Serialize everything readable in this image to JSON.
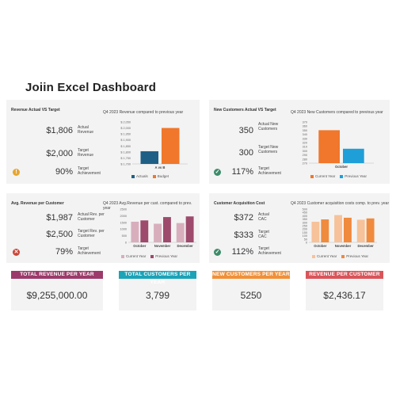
{
  "dashboard_title": "Joiin Excel Dashboard",
  "colors": {
    "navy": "#1f5f86",
    "orange": "#f0772b",
    "cyan": "#1f9fd8",
    "mauve_light": "#d8aebd",
    "mauve_dark": "#9e4a6c",
    "peach_light": "#f7c29a",
    "peach_dark": "#f08a3d",
    "status_green": "#3c8c6a",
    "status_red": "#c9463a",
    "status_amber": "#e5a632",
    "card_magenta": "#9c3b6b",
    "card_teal": "#1ba3b8",
    "card_orange": "#f0913a",
    "card_red": "#d9555a"
  },
  "panels": {
    "revenue": {
      "title": "Revenue Actual VS Target",
      "actual_value": "$1,806",
      "actual_label": "Actual Revenue",
      "target_value": "$2,000",
      "target_label": "Target Revenue",
      "achievement_value": "90%",
      "achievement_label": "Target Achievement",
      "status_icon": "warning-icon",
      "chart_title": "Q4 2023 Revenue compared to previous year"
    },
    "new_customers": {
      "title": "New Customers Actual VS Target",
      "actual_value": "350",
      "actual_label": "Actual New Customers",
      "target_value": "300",
      "target_label": "Target New Customers",
      "achievement_value": "117%",
      "achievement_label": "Target Achievement",
      "status_icon": "check-icon",
      "chart_title": "Q4 2023 New Customers compared to previous year"
    },
    "avg_revenue": {
      "title": "Avg. Revenue per Customer",
      "actual_value": "$1,987",
      "actual_label": "Actual Rev. per Customer",
      "target_value": "$2,500",
      "target_label": "Target Rev. per Customer",
      "achievement_value": "79%",
      "achievement_label": "Target Achievement",
      "status_icon": "cross-icon",
      "chart_title": "Q4 2023 Avg.Revenue per cust. compared to prev. year"
    },
    "cac": {
      "title": "Customer Acquisition Cost",
      "actual_value": "$372",
      "actual_label": "Actual CAC",
      "target_value": "$333",
      "target_label": "Target CAC",
      "achievement_value": "112%",
      "achievement_label": "Target Achievement",
      "status_icon": "check-icon",
      "chart_title": "Q4 2023 Customer acquisition costs comp. to prev. year"
    }
  },
  "cards": {
    "total_revenue": {
      "label": "TOTAL REVENUE PER YEAR",
      "value": "$9,255,000.00"
    },
    "total_customers": {
      "label": "TOTAL CUSTOMERS PER YEAR",
      "value": "3,799"
    },
    "new_customers": {
      "label": "NEW CUSTOMERS PER YEAR",
      "value": "5250"
    },
    "revenue_per_customer": {
      "label": "REVENUE PER CUSTOMER",
      "value": "$2,436.17"
    }
  },
  "chart_data": [
    {
      "id": "revenue",
      "type": "bar",
      "title": "Q4 2023 Revenue compared to previous year",
      "categories": [
        "A vs B"
      ],
      "series": [
        {
          "name": "Actuals",
          "values": [
            1806
          ],
          "color": "#1f5f86"
        },
        {
          "name": "Budget",
          "values": [
            2000
          ],
          "color": "#f0772b"
        }
      ],
      "ylim": [
        1700,
        2050
      ],
      "yticks": [
        "$ 1,700",
        "$ 1,750",
        "$ 1,800",
        "$ 1,850",
        "$ 1,900",
        "$ 1,950",
        "$ 2,000",
        "$ 2,050"
      ],
      "ytick_values": [
        1700,
        1750,
        1800,
        1850,
        1900,
        1950,
        2000,
        2050
      ],
      "legend": "bottom"
    },
    {
      "id": "new_customers",
      "type": "bar",
      "title": "Q4 2023 New Customers compared to previous year",
      "categories": [
        "October"
      ],
      "series": [
        {
          "name": "Current Year",
          "values": [
            350
          ],
          "color": "#f0772b"
        },
        {
          "name": "Previous Year",
          "values": [
            305
          ],
          "color": "#1f9fd8"
        }
      ],
      "ylim": [
        270,
        370
      ],
      "yticks": [
        "270",
        "280",
        "290",
        "300",
        "310",
        "320",
        "330",
        "340",
        "350",
        "360",
        "370"
      ],
      "ytick_values": [
        270,
        280,
        290,
        300,
        310,
        320,
        330,
        340,
        350,
        360,
        370
      ],
      "legend": "bottom"
    },
    {
      "id": "avg_revenue",
      "type": "bar",
      "title": "Q4 2023 Avg.Revenue per cust. compared to prev. year",
      "categories": [
        "October",
        "November",
        "December"
      ],
      "series": [
        {
          "name": "Current Year",
          "values": [
            1550,
            1400,
            1450
          ],
          "color": "#d8aebd"
        },
        {
          "name": "Previous Year",
          "values": [
            1650,
            1900,
            1950
          ],
          "color": "#9e4a6c"
        }
      ],
      "ylim": [
        0,
        2500
      ],
      "yticks": [
        "0",
        "500",
        "1000",
        "1500",
        "2000",
        "2500"
      ],
      "ytick_values": [
        0,
        500,
        1000,
        1500,
        2000,
        2500
      ],
      "legend": "bottom"
    },
    {
      "id": "cac",
      "type": "bar",
      "title": "Q4 2023 Customer acquisition costs comp. to prev. year",
      "categories": [
        "October",
        "November",
        "December"
      ],
      "series": [
        {
          "name": "Current Year",
          "values": [
            310,
            410,
            340
          ],
          "color": "#f7c29a"
        },
        {
          "name": "Previous Year",
          "values": [
            345,
            370,
            360
          ],
          "color": "#f08a3d"
        }
      ],
      "ylim": [
        0,
        500
      ],
      "yticks": [
        "0",
        "50",
        "100",
        "150",
        "200",
        "250",
        "300",
        "350",
        "400",
        "450",
        "500"
      ],
      "ytick_values": [
        0,
        50,
        100,
        150,
        200,
        250,
        300,
        350,
        400,
        450,
        500
      ],
      "legend": "bottom"
    }
  ]
}
